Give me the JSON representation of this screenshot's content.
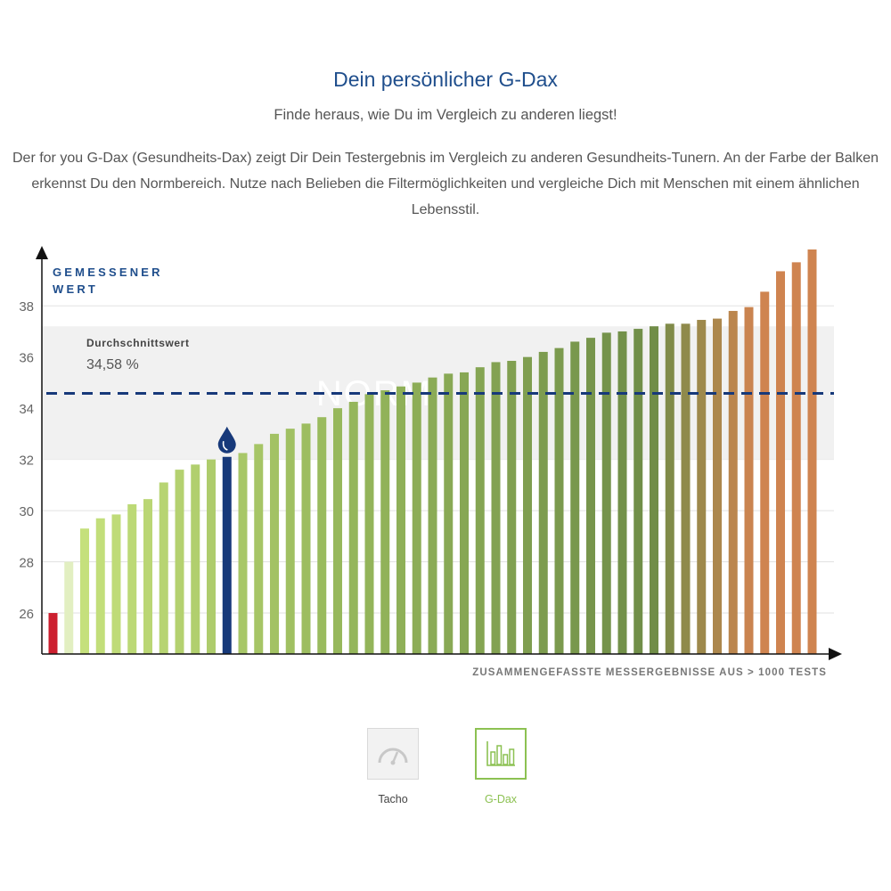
{
  "header": {
    "title": "Dein persönlicher G-Dax",
    "subtitle": "Finde heraus, wie Du im Vergleich zu anderen liegst!",
    "description": "Der for you G-Dax (Gesundheits-Dax) zeigt Dir Dein Testergebnis im Vergleich zu anderen Gesundheits-Tunern. An der Farbe der Balken erkennst Du den Normbereich. Nutze nach Belieben die Filtermöglichkeiten und vergleiche Dich mit Menschen mit einem ähnlichen Lebensstil."
  },
  "chart_data": {
    "type": "bar",
    "ylabel_line1": "GEMESSENER",
    "ylabel_line2": "WERT",
    "xlabel": "ZUSAMMENGEFASSTE MESSERGEBNISSE AUS > 1000 TESTS",
    "ylim": [
      24.4,
      40.2
    ],
    "yticks": [
      "26",
      "28",
      "30",
      "32",
      "34",
      "36",
      "38"
    ],
    "grid": true,
    "norm_band": {
      "label": "NORM",
      "from": 32.0,
      "to": 37.2
    },
    "average": {
      "label": "Durchschnittswert",
      "value_label": "34,58 %",
      "value": 34.58
    },
    "highlight_index": 11,
    "values": [
      26.0,
      28.0,
      29.3,
      29.7,
      29.85,
      30.25,
      30.45,
      31.1,
      31.6,
      31.8,
      32.0,
      32.1,
      32.25,
      32.6,
      33.0,
      33.2,
      33.4,
      33.65,
      34.0,
      34.25,
      34.55,
      34.7,
      34.85,
      35.0,
      35.2,
      35.35,
      35.4,
      35.6,
      35.8,
      35.85,
      36.0,
      36.2,
      36.35,
      36.6,
      36.75,
      36.95,
      37.0,
      37.1,
      37.2,
      37.3,
      37.3,
      37.45,
      37.5,
      37.8,
      37.95,
      38.55,
      39.35,
      39.7,
      40.2
    ],
    "colors": {
      "highlight": "#17397a",
      "lowest": "#cc1f2f",
      "average_line": "#17397a",
      "light_green": "#c5e07c",
      "mid_green": "#97b85c",
      "dark_green": "#6f8d48",
      "orange": "#cf8450",
      "axis": "#111111",
      "text_blue": "#1f4e8c"
    }
  },
  "tabs": [
    {
      "label": "Tacho",
      "icon": "gauge-icon",
      "active": false
    },
    {
      "label": "G-Dax",
      "icon": "bar-chart-icon",
      "active": true
    }
  ]
}
